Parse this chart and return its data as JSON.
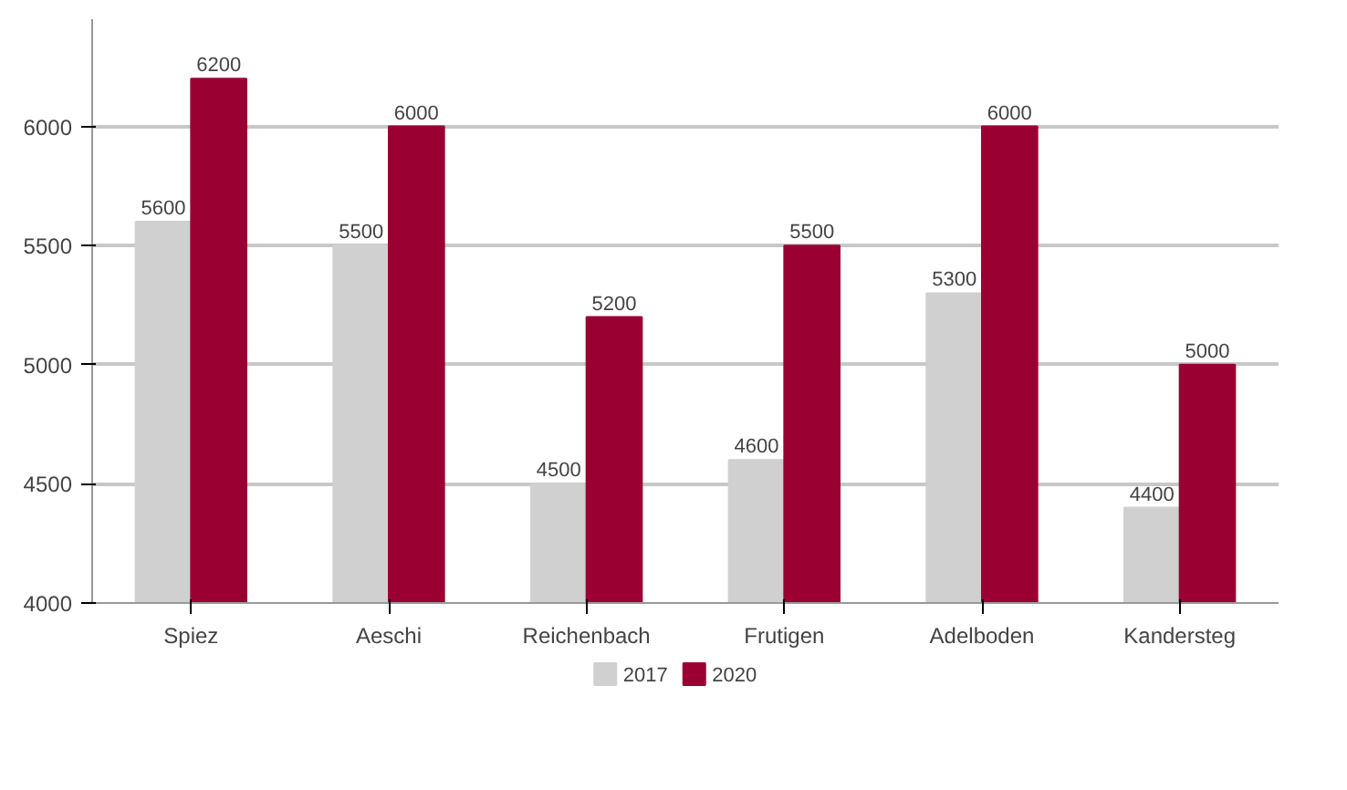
{
  "chart_data": {
    "type": "bar",
    "categories": [
      "Spiez",
      "Aeschi",
      "Reichenbach",
      "Frutigen",
      "Adelboden",
      "Kandersteg"
    ],
    "series": [
      {
        "name": "2017",
        "color": "#d0d0d0",
        "values": [
          5600,
          5500,
          4500,
          4600,
          5300,
          4400
        ]
      },
      {
        "name": "2020",
        "color": "#9b0033",
        "values": [
          6200,
          6000,
          5200,
          5500,
          6000,
          5000
        ]
      }
    ],
    "ylim": [
      4000,
      6450
    ],
    "yticks": [
      4000,
      4500,
      5000,
      5500,
      6000
    ],
    "grid": "y",
    "legend": "bottom",
    "data_labels": true
  }
}
